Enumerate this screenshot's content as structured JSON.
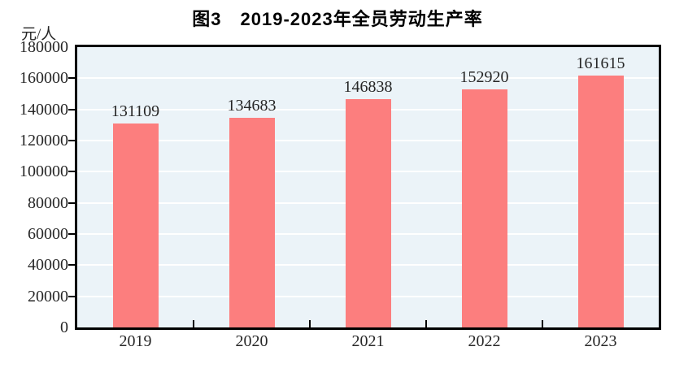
{
  "chart_data": {
    "type": "bar",
    "title": "图3　2019-2023年全员劳动生产率",
    "ylabel": "元/人",
    "xlabel": "",
    "categories": [
      "2019",
      "2020",
      "2021",
      "2022",
      "2023"
    ],
    "values": [
      131109,
      134683,
      146838,
      152920,
      161615
    ],
    "ylim": [
      0,
      180000
    ],
    "ytick_step": 20000,
    "grid": "horizontal-white",
    "legend": "none",
    "colors": {
      "bar": "#FC7E7E",
      "plot_background": "#EBF3F8",
      "gridline": "#FFFFFF",
      "axis": "#000000",
      "text": "#262626"
    }
  }
}
